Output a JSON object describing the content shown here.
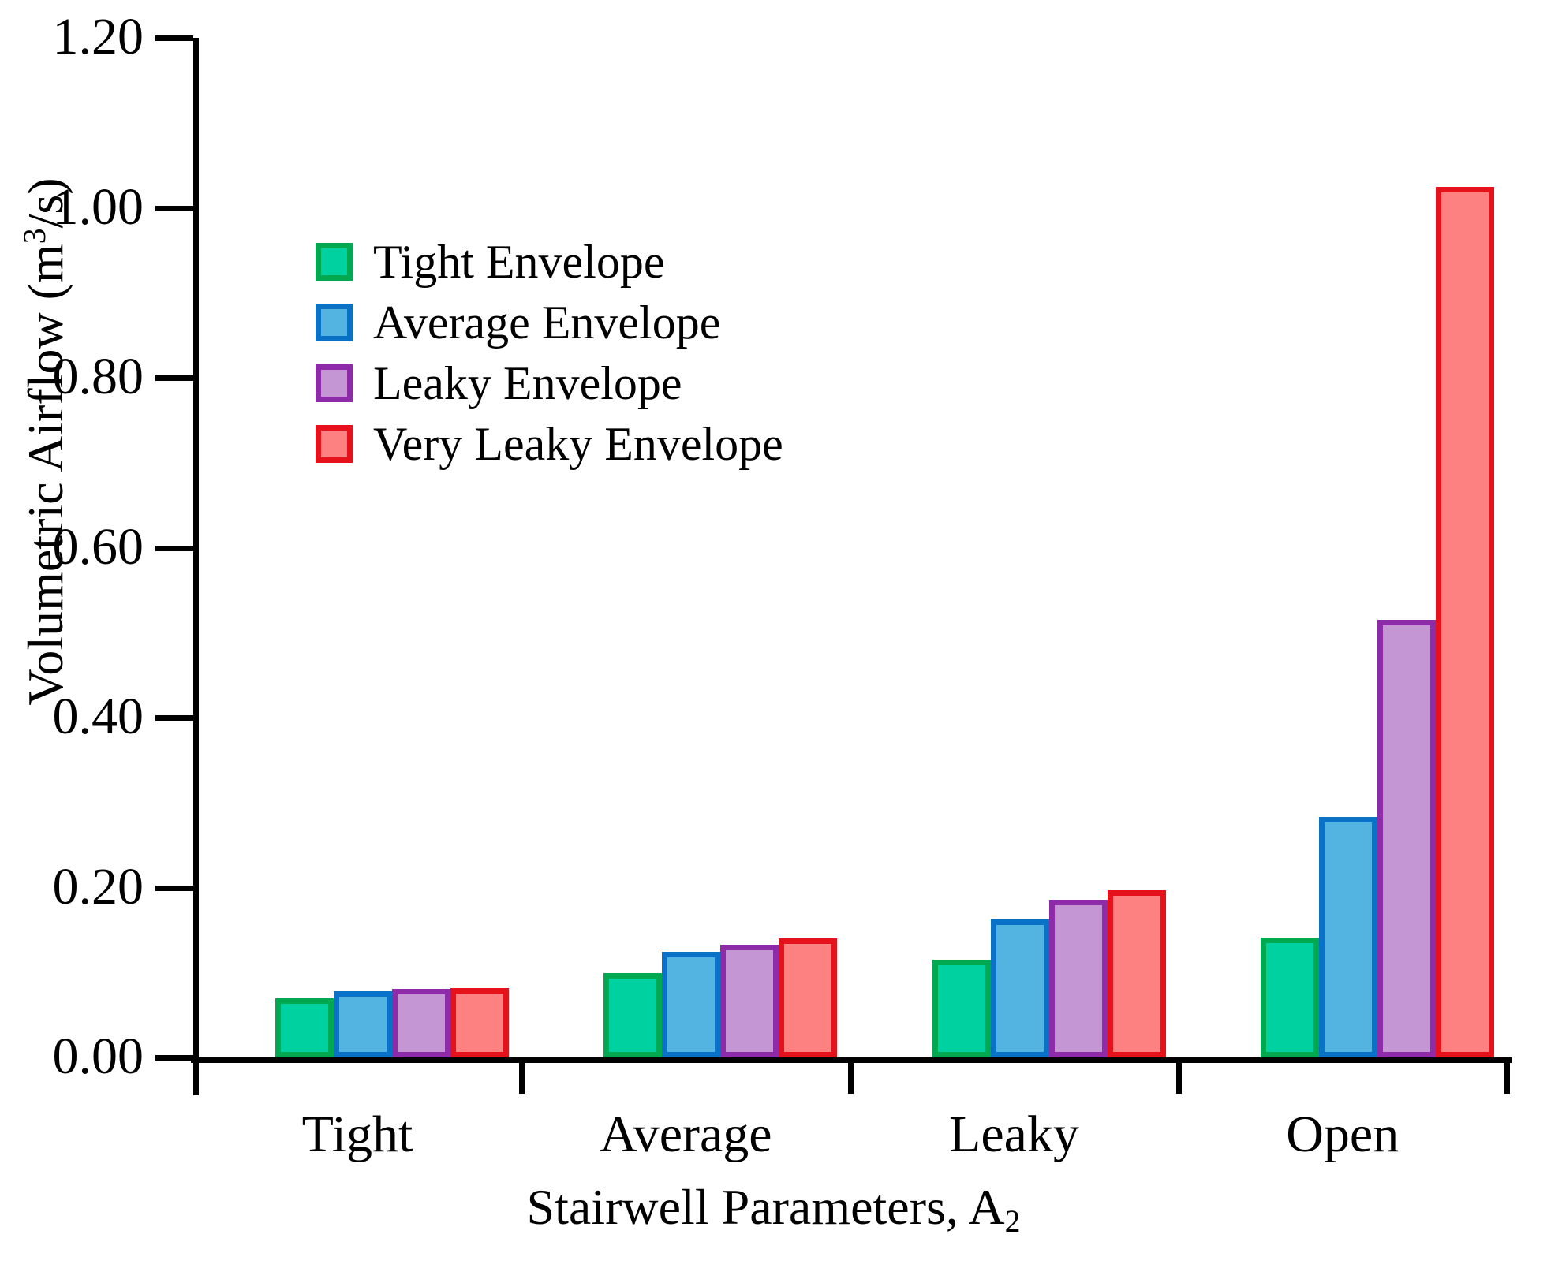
{
  "figure": {
    "background": "#ffffff"
  },
  "chart_data": {
    "type": "bar",
    "title": "",
    "xlabel": "Stairwell Parameters, A₂",
    "ylabel": "Volumetric Airflow (m³/s)",
    "categories": [
      "Tight",
      "Average",
      "Leaky",
      "Open"
    ],
    "series": [
      {
        "name": "Tight Envelope",
        "fill": "#00D1A0",
        "border": "#00A94F",
        "values": [
          0.07,
          0.099,
          0.115,
          0.141
        ]
      },
      {
        "name": "Average Envelope",
        "fill": "#53B4E2",
        "border": "#0A72C6",
        "values": [
          0.078,
          0.124,
          0.162,
          0.283
        ]
      },
      {
        "name": "Leaky Envelope",
        "fill": "#C496D3",
        "border": "#8D2BA9",
        "values": [
          0.081,
          0.133,
          0.186,
          0.515
        ]
      },
      {
        "name": "Very Leaky Envelope",
        "fill": "#FD8181",
        "border": "#E5121B",
        "values": [
          0.082,
          0.14,
          0.197,
          1.025
        ]
      }
    ],
    "ylim": [
      0,
      1.2
    ],
    "yticks": [
      "0.00",
      "0.20",
      "0.40",
      "0.60",
      "0.80",
      "1.00",
      "1.20"
    ],
    "grid": false,
    "legend_position": "upper-left-inside",
    "axis_color": "#000000"
  },
  "labels": {
    "ylabel_pre": "Volumetric Airflow (m",
    "ylabel_sup": "3",
    "ylabel_post": "/s)",
    "xlabel_pre": "Stairwell Parameters, A",
    "xlabel_sub": "2"
  }
}
